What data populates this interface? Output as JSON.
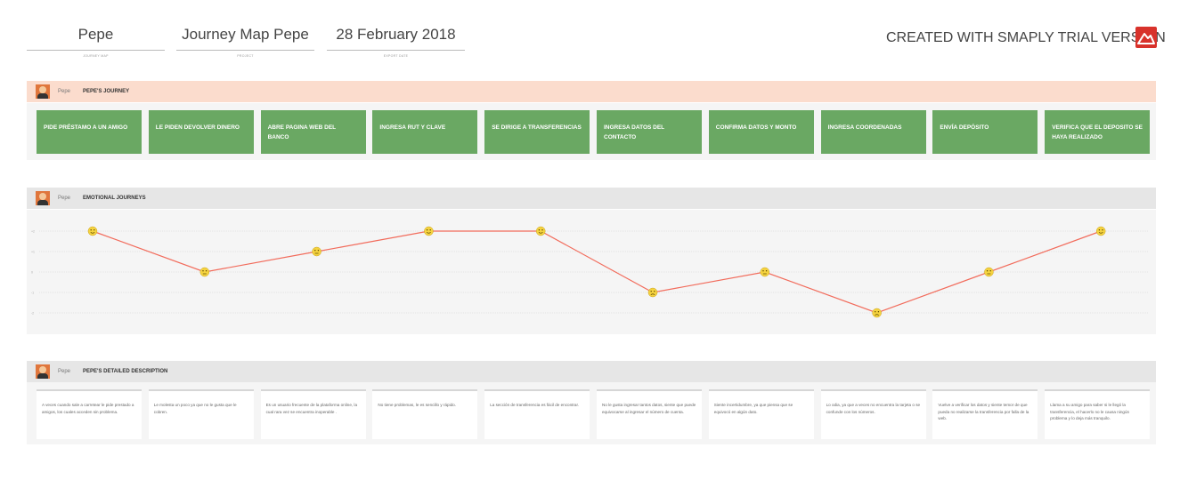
{
  "header": {
    "persona_name": "Pepe",
    "persona_label": "JOURNEY MAP",
    "project_name": "Journey Map Pepe",
    "project_label": "PROJECT",
    "export_date": "28 February 2018",
    "export_label": "EXPORT DATE",
    "trial_text": "CREATED WITH SMAPLY TRIAL VERSION",
    "logo_icon": "smaply-mountain-logo-icon"
  },
  "colors": {
    "journey_header_bg": "#fbdccd",
    "section_header_bg": "#e6e6e6",
    "step_bg": "#6aa863",
    "line": "#f26b5b",
    "face": "#f5d33f",
    "logo": "#d8322b"
  },
  "sections": {
    "journey": {
      "persona": "Pepe",
      "title": "PEPE'S JOURNEY"
    },
    "emotional": {
      "persona": "Pepe",
      "title": "EMOTIONAL JOURNEYS"
    },
    "detailed": {
      "persona": "Pepe",
      "title": "PEPE'S DETAILED DESCRIPTION"
    }
  },
  "steps": [
    "PIDE PRÉSTAMO A UN AMIGO",
    "LE PIDEN DEVOLVER DINERO",
    "ABRE PAGINA WEB DEL BANCO",
    "INGRESA RUT Y CLAVE",
    "SE DIRIGE A TRANSFERENCIAS",
    "INGRESA DATOS DEL CONTACTO",
    "CONFIRMA DATOS Y MONTO",
    "INGRESA COORDENADAS",
    "ENVÍA DEPÓSITO",
    "VERIFICA QUE EL DEPOSITO SE HAYA REALIZADO"
  ],
  "emotions": {
    "levels": [
      "+2",
      "+1",
      "0",
      "-1",
      "-2"
    ],
    "values": [
      2,
      0,
      1,
      2,
      2,
      -1,
      0,
      -2,
      0,
      2
    ],
    "faces": [
      "happy",
      "neutral",
      "neutral",
      "happy",
      "happy",
      "sad",
      "neutral",
      "sad",
      "neutral",
      "happy"
    ]
  },
  "descriptions": [
    "A veces cuando sale a carretear le pide prestado a amigos, los cuales acceden sin problema.",
    "Le molesta un poco ya que no le gusta que le cobren.",
    "Es un usuario frecuente de la plataforma online, la cual rara vez se encuentra inoperable .",
    "No tiene problemas, le es sencillo y rápido.",
    "La sección de transferencia es fácil de encontrar.",
    "No le gusta ingresar tantos datos, siente que puede equivocarse al ingresar el número de cuenta.",
    "Siente incertidumbre, ya que piensa que se equivocó en algún dato.",
    "Lo odia, ya que a veces no encuentra la tarjeta o se confunde con los números.",
    "Vuelve a verificar los datos y siente temor de que pueda no realizarse la transferencia por falla de la web.",
    "Llama a su amigo para saber si le llegó la transferencia, el hacerlo no le causa ningún problema y lo deja más tranquilo."
  ]
}
